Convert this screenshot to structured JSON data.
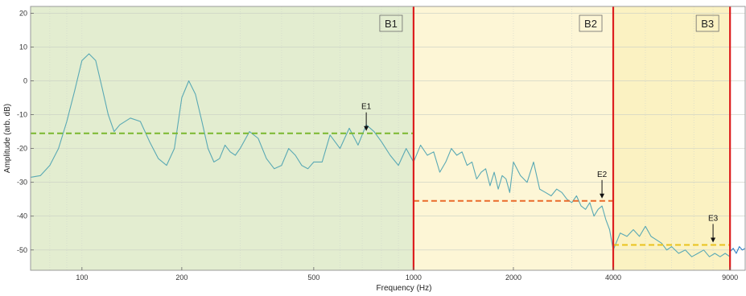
{
  "chart_data": {
    "type": "line",
    "xlabel": "Frequency (Hz)",
    "ylabel": "Amplitude (arb. dB)",
    "x_scale": "log",
    "xlim": [
      70,
      10000
    ],
    "ylim": [
      -56,
      22
    ],
    "x_ticks": [
      {
        "value": 100,
        "label": "100"
      },
      {
        "value": 200,
        "label": "200"
      },
      {
        "value": 500,
        "label": "500"
      },
      {
        "value": 1000,
        "label": "1000"
      },
      {
        "value": 2000,
        "label": "2000"
      },
      {
        "value": 4000,
        "label": "4000"
      },
      {
        "value": 9000,
        "label": "9000"
      }
    ],
    "y_ticks": [
      {
        "value": 20,
        "label": "20"
      },
      {
        "value": 10,
        "label": "10"
      },
      {
        "value": 0,
        "label": "0"
      },
      {
        "value": -10,
        "label": "-10"
      },
      {
        "value": -20,
        "label": "-20"
      },
      {
        "value": -30,
        "label": "-30"
      },
      {
        "value": -40,
        "label": "-40"
      },
      {
        "value": -50,
        "label": "-50"
      }
    ],
    "grid": true,
    "bands": [
      {
        "label": "B1",
        "x_start": 70,
        "x_end": 1000,
        "color": "#e3edd0"
      },
      {
        "label": "B2",
        "x_start": 1000,
        "x_end": 4000,
        "color": "#fdf6d6"
      },
      {
        "label": "B3",
        "x_start": 4000,
        "x_end": 9000,
        "color": "#fbf2c2"
      }
    ],
    "boundaries": [
      1000,
      4000,
      9000
    ],
    "boundary_color": "#dd1f1f",
    "mean_levels": [
      {
        "x_start": 70,
        "x_end": 1000,
        "y": -15.5,
        "color": "#7ab82e"
      },
      {
        "x_start": 1000,
        "x_end": 4000,
        "y": -35.5,
        "color": "#ea6a2a"
      },
      {
        "x_start": 4000,
        "x_end": 9000,
        "y": -48.5,
        "color": "#e9c21c"
      }
    ],
    "annotations": [
      {
        "label": "E1",
        "x": 720,
        "y": -15.5
      },
      {
        "label": "E2",
        "x": 3700,
        "y": -35.5
      },
      {
        "label": "E3",
        "x": 8000,
        "y": -48.5
      }
    ],
    "series": [
      {
        "color": "#5aa9b4",
        "x": [
          70,
          75,
          80,
          85,
          90,
          95,
          100,
          105,
          110,
          115,
          120,
          125,
          130,
          140,
          150,
          160,
          170,
          180,
          190,
          200,
          210,
          220,
          230,
          240,
          250,
          260,
          270,
          280,
          290,
          300,
          320,
          340,
          360,
          380,
          400,
          420,
          440,
          460,
          480,
          500,
          530,
          560,
          600,
          640,
          680,
          720,
          760,
          800,
          850,
          900,
          950,
          1000,
          1050,
          1100,
          1150,
          1200,
          1250,
          1300,
          1350,
          1400,
          1450,
          1500,
          1550,
          1600,
          1650,
          1700,
          1750,
          1800,
          1850,
          1900,
          1950,
          2000,
          2100,
          2200,
          2300,
          2400,
          2500,
          2600,
          2700,
          2800,
          2900,
          3000,
          3100,
          3200,
          3300,
          3400,
          3500,
          3600,
          3700,
          3800,
          3900,
          4000,
          4200,
          4400,
          4600,
          4800,
          5000,
          5200,
          5400,
          5600,
          5800,
          6000,
          6300,
          6600,
          6900,
          7200,
          7500,
          7800,
          8100,
          8400,
          8700,
          9000
        ],
        "y": [
          -28.5,
          -28,
          -25,
          -20,
          -12,
          -3,
          6,
          8,
          6,
          -2,
          -10,
          -15,
          -13,
          -11,
          -12,
          -18,
          -23,
          -25,
          -20,
          -5,
          0,
          -4,
          -12,
          -20,
          -24,
          -23,
          -19,
          -21,
          -22,
          -20,
          -15,
          -17,
          -23,
          -26,
          -25,
          -20,
          -22,
          -25,
          -26,
          -24,
          -24,
          -16,
          -20,
          -14,
          -19,
          -13,
          -15,
          -18,
          -22,
          -25,
          -20,
          -24,
          -19,
          -22,
          -21,
          -27,
          -24,
          -20,
          -22,
          -21,
          -25,
          -24,
          -29,
          -27,
          -26,
          -31,
          -27,
          -32,
          -28,
          -29,
          -33,
          -24,
          -28,
          -30,
          -24,
          -32,
          -33,
          -34,
          -32,
          -33,
          -35,
          -36,
          -34,
          -37,
          -38,
          -36,
          -40,
          -38,
          -37,
          -41,
          -44,
          -50,
          -45,
          -46,
          -44,
          -46,
          -43,
          -46,
          -47,
          -48,
          -50,
          -49,
          -51,
          -50,
          -52,
          -51,
          -50,
          -52,
          -51,
          -52,
          -51,
          -52
        ]
      },
      {
        "color": "#2f7fc4",
        "x": [
          9000,
          9200,
          9400,
          9600,
          9800,
          10000
        ],
        "y": [
          -50.5,
          -49.5,
          -51,
          -49,
          -50,
          -49.5
        ]
      }
    ]
  }
}
